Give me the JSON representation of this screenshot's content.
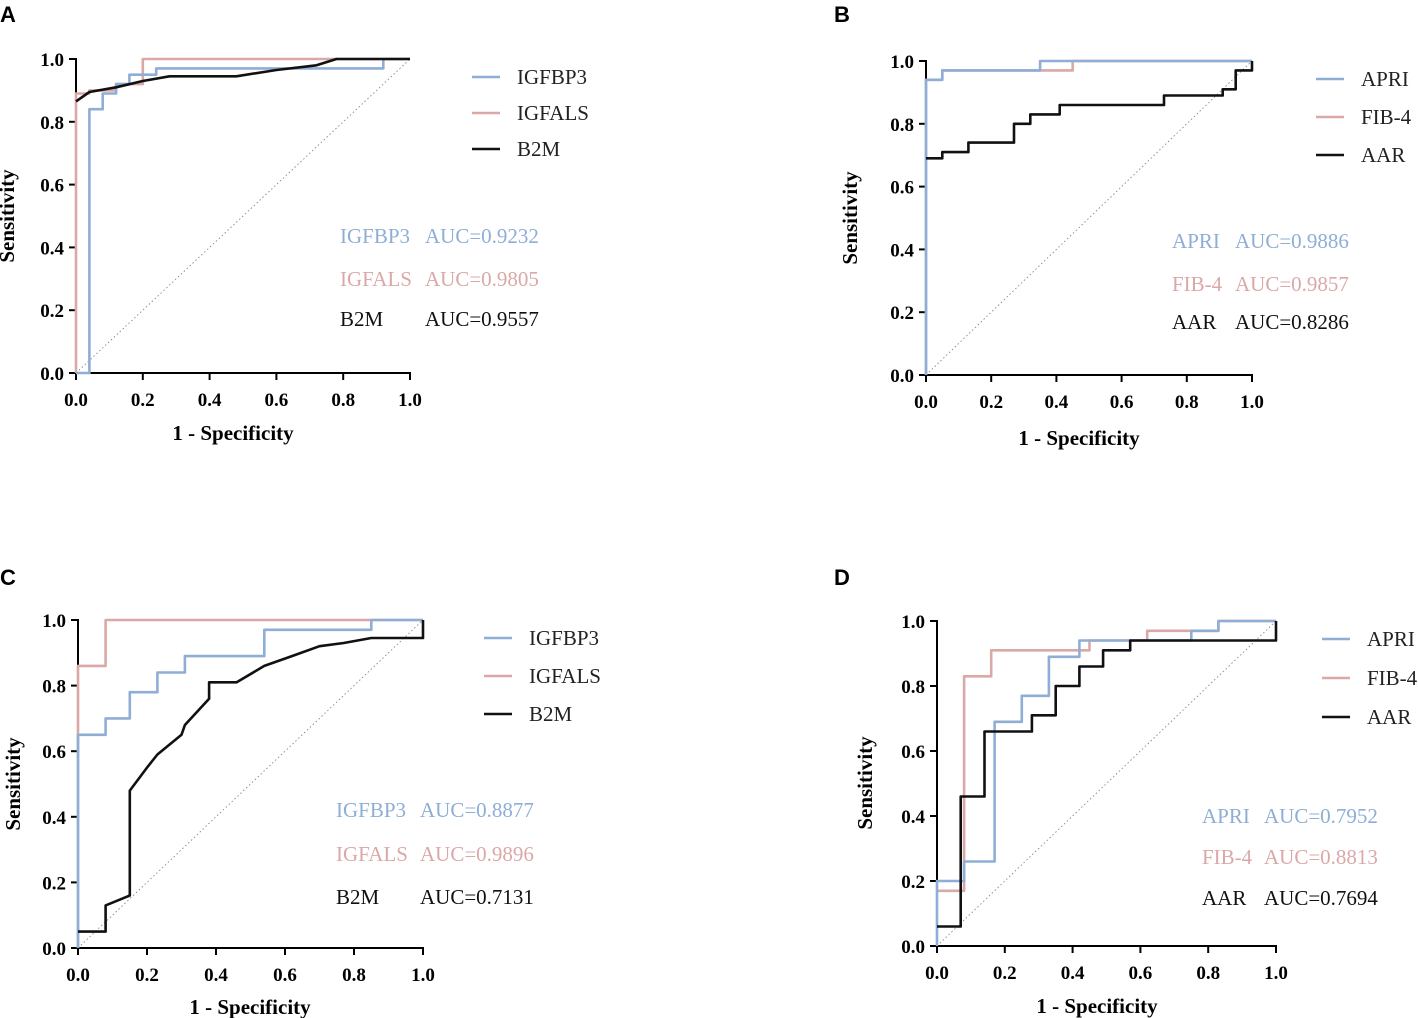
{
  "colors": {
    "blue": "#8eaed6",
    "pink": "#dba8a8",
    "black": "#111111",
    "diagonal": "#888888"
  },
  "chart_data": [
    {
      "panel": "A",
      "type": "line",
      "xlabel": "1 - Specificity",
      "ylabel": "Sensitivity",
      "xlim": [
        0,
        1
      ],
      "ylim": [
        0,
        1
      ],
      "xticks": [
        "0.0",
        "0.2",
        "0.4",
        "0.6",
        "0.8",
        "1.0"
      ],
      "yticks": [
        "0.0",
        "0.2",
        "0.4",
        "0.6",
        "0.8",
        "1.0"
      ],
      "legend": [
        "IGFBP3",
        "IGFALS",
        "B2M"
      ],
      "series": [
        {
          "name": "IGFBP3",
          "color": "#8eaed6",
          "step": true,
          "points": [
            [
              0,
              0
            ],
            [
              0.04,
              0
            ],
            [
              0.04,
              0.84
            ],
            [
              0.08,
              0.84
            ],
            [
              0.08,
              0.89
            ],
            [
              0.12,
              0.89
            ],
            [
              0.12,
              0.92
            ],
            [
              0.16,
              0.92
            ],
            [
              0.16,
              0.95
            ],
            [
              0.24,
              0.95
            ],
            [
              0.24,
              0.97
            ],
            [
              0.92,
              0.97
            ],
            [
              0.92,
              1.0
            ],
            [
              1.0,
              1.0
            ]
          ]
        },
        {
          "name": "IGFALS",
          "color": "#dba8a8",
          "step": true,
          "points": [
            [
              0,
              0
            ],
            [
              0,
              0.89
            ],
            [
              0.04,
              0.89
            ],
            [
              0.04,
              0.9
            ],
            [
              0.12,
              0.9
            ],
            [
              0.12,
              0.92
            ],
            [
              0.2,
              0.92
            ],
            [
              0.2,
              1.0
            ],
            [
              1.0,
              1.0
            ]
          ]
        },
        {
          "name": "B2M",
          "color": "#111111",
          "step": false,
          "points": [
            [
              0,
              0.865
            ],
            [
              0.04,
              0.895
            ],
            [
              0.12,
              0.91
            ],
            [
              0.2,
              0.93
            ],
            [
              0.28,
              0.945
            ],
            [
              0.48,
              0.945
            ],
            [
              0.6,
              0.965
            ],
            [
              0.72,
              0.98
            ],
            [
              0.78,
              1.0
            ],
            [
              1.0,
              1.0
            ]
          ]
        }
      ],
      "auc": [
        {
          "name": "IGFBP3",
          "value": "AUC=0.9232"
        },
        {
          "name": "IGFALS",
          "value": "AUC=0.9805"
        },
        {
          "name": "B2M",
          "value": "AUC=0.9557"
        }
      ]
    },
    {
      "panel": "B",
      "type": "line",
      "xlabel": "1 - Specificity",
      "ylabel": "Sensitivity",
      "xlim": [
        0,
        1
      ],
      "ylim": [
        0,
        1
      ],
      "xticks": [
        "0.0",
        "0.2",
        "0.4",
        "0.6",
        "0.8",
        "1.0"
      ],
      "yticks": [
        "0.0",
        "0.2",
        "0.4",
        "0.6",
        "0.8",
        "1.0"
      ],
      "legend": [
        "APRI",
        "FIB-4",
        "AAR"
      ],
      "series": [
        {
          "name": "APRI",
          "color": "#8eaed6",
          "step": true,
          "points": [
            [
              0,
              0
            ],
            [
              0,
              0.94
            ],
            [
              0.05,
              0.94
            ],
            [
              0.05,
              0.97
            ],
            [
              0.35,
              0.97
            ],
            [
              0.35,
              1.0
            ],
            [
              1.0,
              1.0
            ]
          ]
        },
        {
          "name": "FIB-4",
          "color": "#dba8a8",
          "step": true,
          "points": [
            [
              0,
              0
            ],
            [
              0,
              0.94
            ],
            [
              0.05,
              0.94
            ],
            [
              0.05,
              0.97
            ],
            [
              0.45,
              0.97
            ],
            [
              0.45,
              1.0
            ],
            [
              1.0,
              1.0
            ]
          ]
        },
        {
          "name": "AAR",
          "color": "#111111",
          "step": true,
          "points": [
            [
              0,
              0.69
            ],
            [
              0.05,
              0.69
            ],
            [
              0.05,
              0.71
            ],
            [
              0.13,
              0.71
            ],
            [
              0.13,
              0.74
            ],
            [
              0.27,
              0.74
            ],
            [
              0.27,
              0.8
            ],
            [
              0.32,
              0.8
            ],
            [
              0.32,
              0.83
            ],
            [
              0.41,
              0.83
            ],
            [
              0.41,
              0.86
            ],
            [
              0.73,
              0.86
            ],
            [
              0.73,
              0.89
            ],
            [
              0.91,
              0.89
            ],
            [
              0.91,
              0.91
            ],
            [
              0.95,
              0.91
            ],
            [
              0.95,
              0.97
            ],
            [
              1.0,
              0.97
            ],
            [
              1.0,
              1.0
            ]
          ]
        }
      ],
      "auc": [
        {
          "name": "APRI",
          "value": "AUC=0.9886"
        },
        {
          "name": "FIB-4",
          "value": "AUC=0.9857"
        },
        {
          "name": "AAR",
          "value": "AUC=0.8286"
        }
      ]
    },
    {
      "panel": "C",
      "type": "line",
      "xlabel": "1 - Specificity",
      "ylabel": "Sensitivity",
      "xlim": [
        0,
        1
      ],
      "ylim": [
        0,
        1
      ],
      "xticks": [
        "0.0",
        "0.2",
        "0.4",
        "0.6",
        "0.8",
        "1.0"
      ],
      "yticks": [
        "0.0",
        "0.2",
        "0.4",
        "0.6",
        "0.8",
        "1.0"
      ],
      "legend": [
        "IGFBP3",
        "IGFALS",
        "B2M"
      ],
      "series": [
        {
          "name": "IGFBP3",
          "color": "#8eaed6",
          "step": true,
          "points": [
            [
              0,
              0
            ],
            [
              0,
              0.65
            ],
            [
              0.08,
              0.65
            ],
            [
              0.08,
              0.7
            ],
            [
              0.15,
              0.7
            ],
            [
              0.15,
              0.78
            ],
            [
              0.23,
              0.78
            ],
            [
              0.23,
              0.84
            ],
            [
              0.31,
              0.84
            ],
            [
              0.31,
              0.89
            ],
            [
              0.54,
              0.89
            ],
            [
              0.54,
              0.97
            ],
            [
              0.85,
              0.97
            ],
            [
              0.85,
              1.0
            ],
            [
              1.0,
              1.0
            ]
          ]
        },
        {
          "name": "IGFALS",
          "color": "#dba8a8",
          "step": true,
          "points": [
            [
              0,
              0
            ],
            [
              0,
              0.86
            ],
            [
              0.08,
              0.86
            ],
            [
              0.08,
              1.0
            ],
            [
              1.0,
              1.0
            ]
          ]
        },
        {
          "name": "B2M",
          "color": "#111111",
          "step": false,
          "points": [
            [
              0,
              0.05
            ],
            [
              0.08,
              0.05
            ],
            [
              0.08,
              0.13
            ],
            [
              0.15,
              0.16
            ],
            [
              0.15,
              0.48
            ],
            [
              0.2,
              0.55
            ],
            [
              0.23,
              0.59
            ],
            [
              0.3,
              0.65
            ],
            [
              0.31,
              0.68
            ],
            [
              0.38,
              0.76
            ],
            [
              0.38,
              0.81
            ],
            [
              0.46,
              0.81
            ],
            [
              0.54,
              0.86
            ],
            [
              0.62,
              0.89
            ],
            [
              0.7,
              0.92
            ],
            [
              0.77,
              0.93
            ],
            [
              0.85,
              0.945
            ],
            [
              1.0,
              0.945
            ],
            [
              1.0,
              1.0
            ]
          ]
        }
      ],
      "auc": [
        {
          "name": "IGFBP3",
          "value": "AUC=0.8877"
        },
        {
          "name": "IGFALS",
          "value": "AUC=0.9896"
        },
        {
          "name": "B2M",
          "value": "AUC=0.7131"
        }
      ]
    },
    {
      "panel": "D",
      "type": "line",
      "xlabel": "1 - Specificity",
      "ylabel": "Sensitivity",
      "xlim": [
        0,
        1
      ],
      "ylim": [
        0,
        1
      ],
      "xticks": [
        "0.0",
        "0.2",
        "0.4",
        "0.6",
        "0.8",
        "1.0"
      ],
      "yticks": [
        "0.0",
        "0.2",
        "0.4",
        "0.6",
        "0.8",
        "1.0"
      ],
      "legend": [
        "APRI",
        "FIB-4",
        "AAR"
      ],
      "series": [
        {
          "name": "APRI",
          "color": "#8eaed6",
          "step": true,
          "points": [
            [
              0,
              0
            ],
            [
              0,
              0.2
            ],
            [
              0.08,
              0.2
            ],
            [
              0.08,
              0.26
            ],
            [
              0.17,
              0.26
            ],
            [
              0.17,
              0.69
            ],
            [
              0.25,
              0.69
            ],
            [
              0.25,
              0.77
            ],
            [
              0.33,
              0.77
            ],
            [
              0.33,
              0.89
            ],
            [
              0.42,
              0.89
            ],
            [
              0.42,
              0.94
            ],
            [
              0.75,
              0.94
            ],
            [
              0.75,
              0.97
            ],
            [
              0.83,
              0.97
            ],
            [
              0.83,
              1.0
            ],
            [
              1.0,
              1.0
            ]
          ]
        },
        {
          "name": "FIB-4",
          "color": "#dba8a8",
          "step": true,
          "points": [
            [
              0,
              0.17
            ],
            [
              0.08,
              0.17
            ],
            [
              0.08,
              0.83
            ],
            [
              0.16,
              0.83
            ],
            [
              0.16,
              0.91
            ],
            [
              0.45,
              0.91
            ],
            [
              0.45,
              0.94
            ],
            [
              0.62,
              0.94
            ],
            [
              0.62,
              0.97
            ],
            [
              0.83,
              0.97
            ],
            [
              0.83,
              1.0
            ],
            [
              1.0,
              1.0
            ]
          ]
        },
        {
          "name": "AAR",
          "color": "#111111",
          "step": true,
          "points": [
            [
              0,
              0.06
            ],
            [
              0.07,
              0.06
            ],
            [
              0.07,
              0.46
            ],
            [
              0.14,
              0.46
            ],
            [
              0.14,
              0.66
            ],
            [
              0.28,
              0.66
            ],
            [
              0.28,
              0.71
            ],
            [
              0.35,
              0.71
            ],
            [
              0.35,
              0.8
            ],
            [
              0.42,
              0.8
            ],
            [
              0.42,
              0.86
            ],
            [
              0.49,
              0.86
            ],
            [
              0.49,
              0.91
            ],
            [
              0.57,
              0.91
            ],
            [
              0.57,
              0.94
            ],
            [
              1.0,
              0.94
            ],
            [
              1.0,
              1.0
            ]
          ]
        }
      ],
      "auc": [
        {
          "name": "APRI",
          "value": "AUC=0.7952"
        },
        {
          "name": "FIB-4",
          "value": "AUC=0.8813"
        },
        {
          "name": "AAR",
          "value": "AUC=0.7694"
        }
      ]
    }
  ]
}
